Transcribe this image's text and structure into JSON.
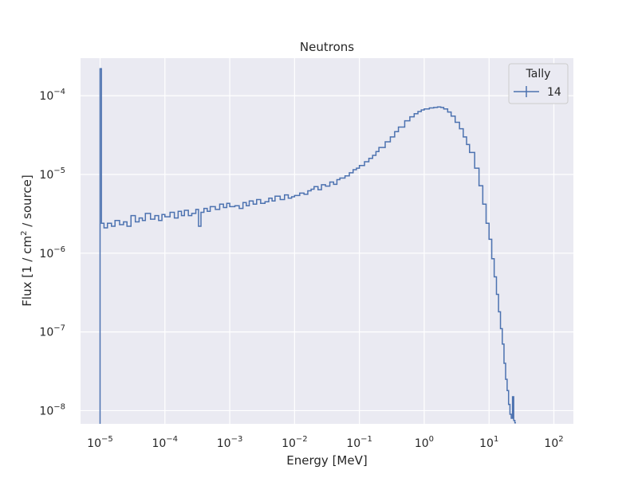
{
  "chart_data": {
    "type": "line",
    "title": "Neutrons",
    "xlabel": "Energy [MeV]",
    "ylabel_parts": [
      "Flux [1 / cm",
      "2",
      " / source]"
    ],
    "xscale": "log",
    "yscale": "log",
    "xlim": [
      5e-06,
      200
    ],
    "ylim": [
      6.8e-09,
      0.0003
    ],
    "grid": true,
    "background": "#eaeaf2",
    "line_color": "#4c72b0",
    "x_ticks": [
      {
        "base": "10",
        "exp": "−5",
        "value": 1e-05
      },
      {
        "base": "10",
        "exp": "−4",
        "value": 0.0001
      },
      {
        "base": "10",
        "exp": "−3",
        "value": 0.001
      },
      {
        "base": "10",
        "exp": "−2",
        "value": 0.01
      },
      {
        "base": "10",
        "exp": "−1",
        "value": 0.1
      },
      {
        "base": "10",
        "exp": "0",
        "value": 1
      },
      {
        "base": "10",
        "exp": "1",
        "value": 10
      },
      {
        "base": "10",
        "exp": "2",
        "value": 100
      }
    ],
    "y_ticks": [
      {
        "base": "10",
        "exp": "−8",
        "value": 1e-08
      },
      {
        "base": "10",
        "exp": "−7",
        "value": 1e-07
      },
      {
        "base": "10",
        "exp": "−6",
        "value": 1e-06
      },
      {
        "base": "10",
        "exp": "−5",
        "value": 1e-05
      },
      {
        "base": "10",
        "exp": "−4",
        "value": 0.0001
      }
    ],
    "legend": {
      "title": "Tally",
      "position": "top-right",
      "entries": [
        "14"
      ]
    },
    "series": [
      {
        "name": "14",
        "drawstyle": "steps",
        "x": [
          1e-05,
          1.05e-05,
          1.15e-05,
          1.3e-05,
          1.5e-05,
          1.7e-05,
          2e-05,
          2.3e-05,
          2.6e-05,
          3e-05,
          3.5e-05,
          4e-05,
          4.5e-05,
          5e-05,
          6e-05,
          7e-05,
          8e-05,
          9e-05,
          0.0001,
          0.00012,
          0.00014,
          0.00016,
          0.00018,
          0.0002,
          0.00023,
          0.00026,
          0.0003,
          0.00033,
          0.00036,
          0.0004,
          0.00045,
          0.0005,
          0.0006,
          0.0007,
          0.0008,
          0.0009,
          0.001,
          0.0012,
          0.0014,
          0.0016,
          0.0018,
          0.002,
          0.0023,
          0.0026,
          0.003,
          0.0035,
          0.004,
          0.0045,
          0.005,
          0.006,
          0.007,
          0.008,
          0.009,
          0.01,
          0.012,
          0.014,
          0.016,
          0.018,
          0.02,
          0.023,
          0.026,
          0.03,
          0.035,
          0.04,
          0.045,
          0.05,
          0.06,
          0.07,
          0.08,
          0.09,
          0.1,
          0.12,
          0.14,
          0.16,
          0.18,
          0.2,
          0.25,
          0.3,
          0.35,
          0.4,
          0.5,
          0.6,
          0.7,
          0.8,
          0.9,
          1.0,
          1.2,
          1.4,
          1.6,
          1.8,
          2.0,
          2.3,
          2.6,
          3.0,
          3.5,
          4.0,
          4.5,
          5.0,
          6.0,
          7.0,
          8.0,
          9.0,
          10.0,
          11.0,
          12.0,
          13.0,
          14.0,
          15.0,
          16.0,
          17.0,
          18.0,
          19.0,
          20.0,
          21.0,
          22.0,
          23.0,
          24.0,
          25.0
        ],
        "y": [
          0.00022,
          2.4e-06,
          2.1e-06,
          2.4e-06,
          2.2e-06,
          2.6e-06,
          2.3e-06,
          2.5e-06,
          2.2e-06,
          3e-06,
          2.5e-06,
          2.8e-06,
          2.6e-06,
          3.2e-06,
          2.7e-06,
          3e-06,
          2.6e-06,
          3.1e-06,
          2.9e-06,
          3.3e-06,
          2.8e-06,
          3.4e-06,
          3e-06,
          3.5e-06,
          3e-06,
          3.2e-06,
          3.6e-06,
          2.2e-06,
          3.3e-06,
          3.7e-06,
          3.4e-06,
          3.9e-06,
          3.6e-06,
          4.2e-06,
          3.8e-06,
          4.3e-06,
          3.9e-06,
          4e-06,
          3.7e-06,
          4.4e-06,
          4e-06,
          4.6e-06,
          4.2e-06,
          4.8e-06,
          4.3e-06,
          4.5e-06,
          5e-06,
          4.6e-06,
          5.3e-06,
          4.8e-06,
          5.5e-06,
          5e-06,
          5.2e-06,
          5.4e-06,
          5.8e-06,
          5.6e-06,
          6.2e-06,
          6.5e-06,
          7e-06,
          6.4e-06,
          7.4e-06,
          7.1e-06,
          8e-06,
          7.5e-06,
          8.6e-06,
          9e-06,
          9.6e-06,
          1.05e-05,
          1.15e-05,
          1.2e-05,
          1.3e-05,
          1.45e-05,
          1.6e-05,
          1.75e-05,
          1.95e-05,
          2.2e-05,
          2.6e-05,
          3e-05,
          3.5e-05,
          4e-05,
          4.8e-05,
          5.4e-05,
          5.9e-05,
          6.3e-05,
          6.6e-05,
          6.8e-05,
          7e-05,
          7.1e-05,
          7.2e-05,
          7.1e-05,
          6.8e-05,
          6.2e-05,
          5.5e-05,
          4.6e-05,
          3.8e-05,
          3e-05,
          2.4e-05,
          1.9e-05,
          1.2e-05,
          7.2e-06,
          4.2e-06,
          2.4e-06,
          1.5e-06,
          8.5e-07,
          5e-07,
          3e-07,
          1.8e-07,
          1.1e-07,
          7e-08,
          4e-08,
          2.5e-08,
          1.8e-08,
          1.2e-08,
          9e-09,
          8e-09,
          1.5e-08,
          7.5e-09,
          7e-09
        ]
      }
    ]
  }
}
